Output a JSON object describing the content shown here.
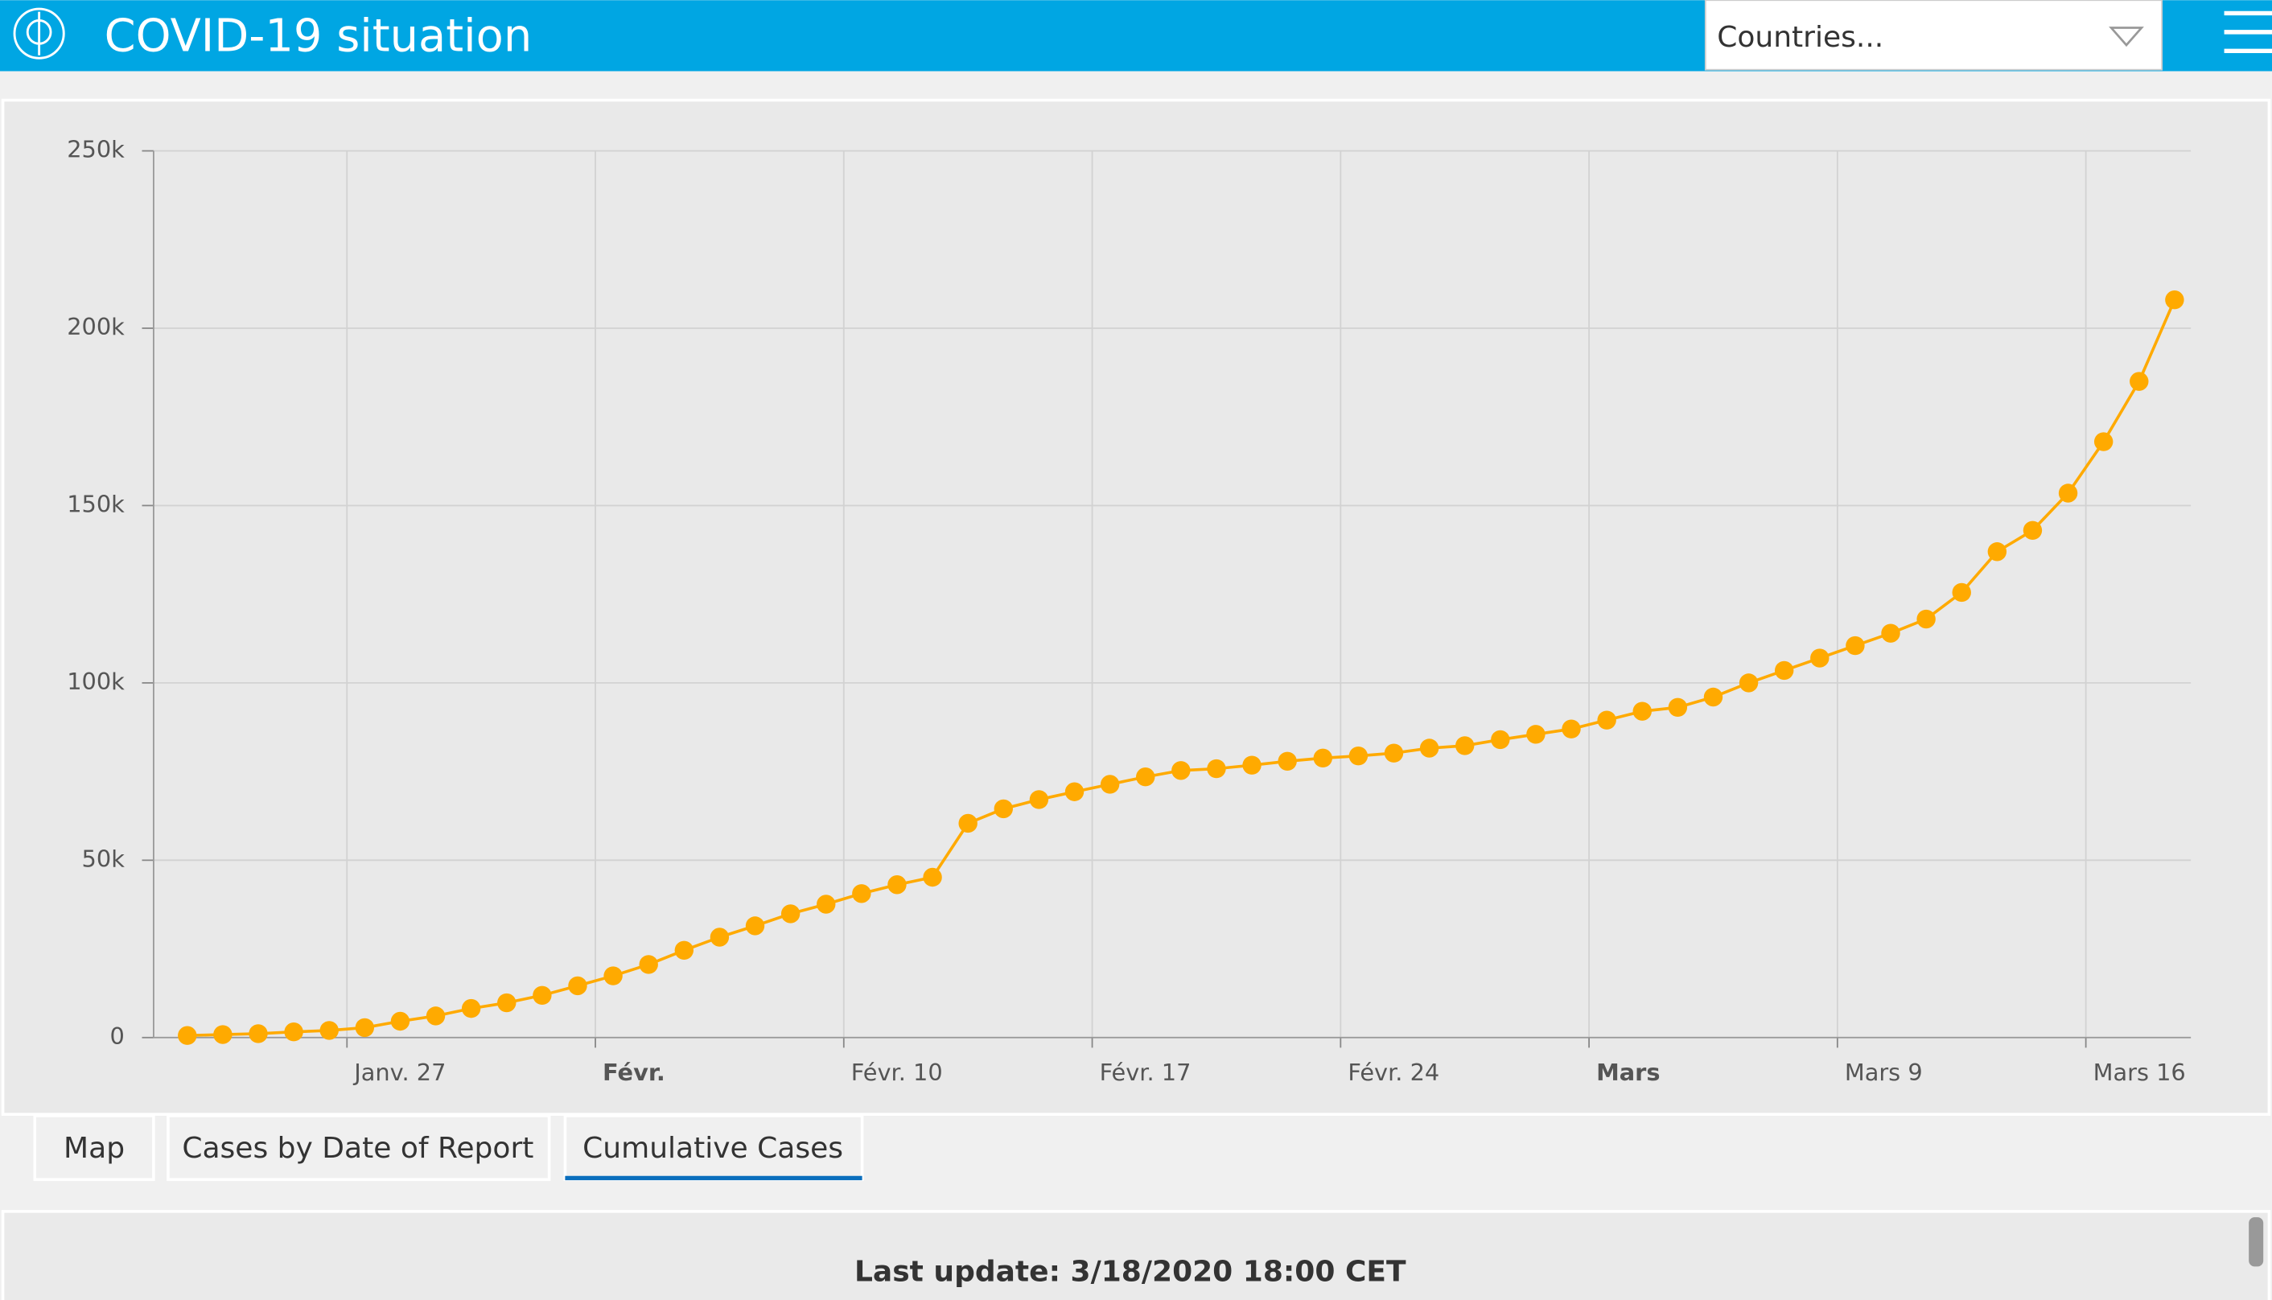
{
  "header": {
    "title": "COVID-19 situation",
    "country_select": "Countries..."
  },
  "tabs": [
    "Map",
    "Cases by Date of Report",
    "Cumulative Cases"
  ],
  "footer": "Last update: 3/18/2020 18:00 CET",
  "chart_data": {
    "type": "line",
    "color": "#ffaa00",
    "grid": true,
    "categories": [
      null,
      null,
      null,
      null,
      null,
      "Janv. 27",
      null,
      null,
      null,
      null,
      null,
      null,
      "Févr.",
      null,
      null,
      null,
      null,
      null,
      null,
      "Févr. 10",
      null,
      null,
      null,
      null,
      null,
      null,
      "Févr. 17",
      null,
      null,
      null,
      null,
      null,
      null,
      "Févr. 24",
      null,
      null,
      null,
      null,
      null,
      null,
      "Mars",
      null,
      null,
      null,
      null,
      null,
      null,
      "Mars 9",
      null,
      null,
      null,
      null,
      null,
      null,
      "Mars 16",
      null,
      null
    ],
    "values": [
      580,
      850,
      1100,
      1600,
      2000,
      2800,
      4600,
      6100,
      8200,
      9800,
      11900,
      14600,
      17400,
      20600,
      24600,
      28300,
      31500,
      34900,
      37600,
      40600,
      43100,
      45200,
      60400,
      64500,
      67100,
      69300,
      71400,
      73500,
      75300,
      75800,
      76800,
      77900,
      78800,
      79400,
      80200,
      81600,
      82300,
      84000,
      85500,
      87000,
      89500,
      92000,
      93100,
      96000,
      100000,
      103500,
      107000,
      110500,
      114000,
      118000,
      125500,
      137000,
      143000,
      153500,
      168000,
      185000,
      208000
    ],
    "ylim": [
      0,
      250000
    ],
    "yticks": [
      0,
      {
        "value": 50000,
        "label": "50k"
      },
      {
        "value": 100000,
        "label": "100k"
      },
      {
        "value": 150000,
        "label": "150k"
      },
      {
        "value": 200000,
        "label": "200k"
      },
      {
        "value": 250000,
        "label": "250k"
      }
    ]
  }
}
